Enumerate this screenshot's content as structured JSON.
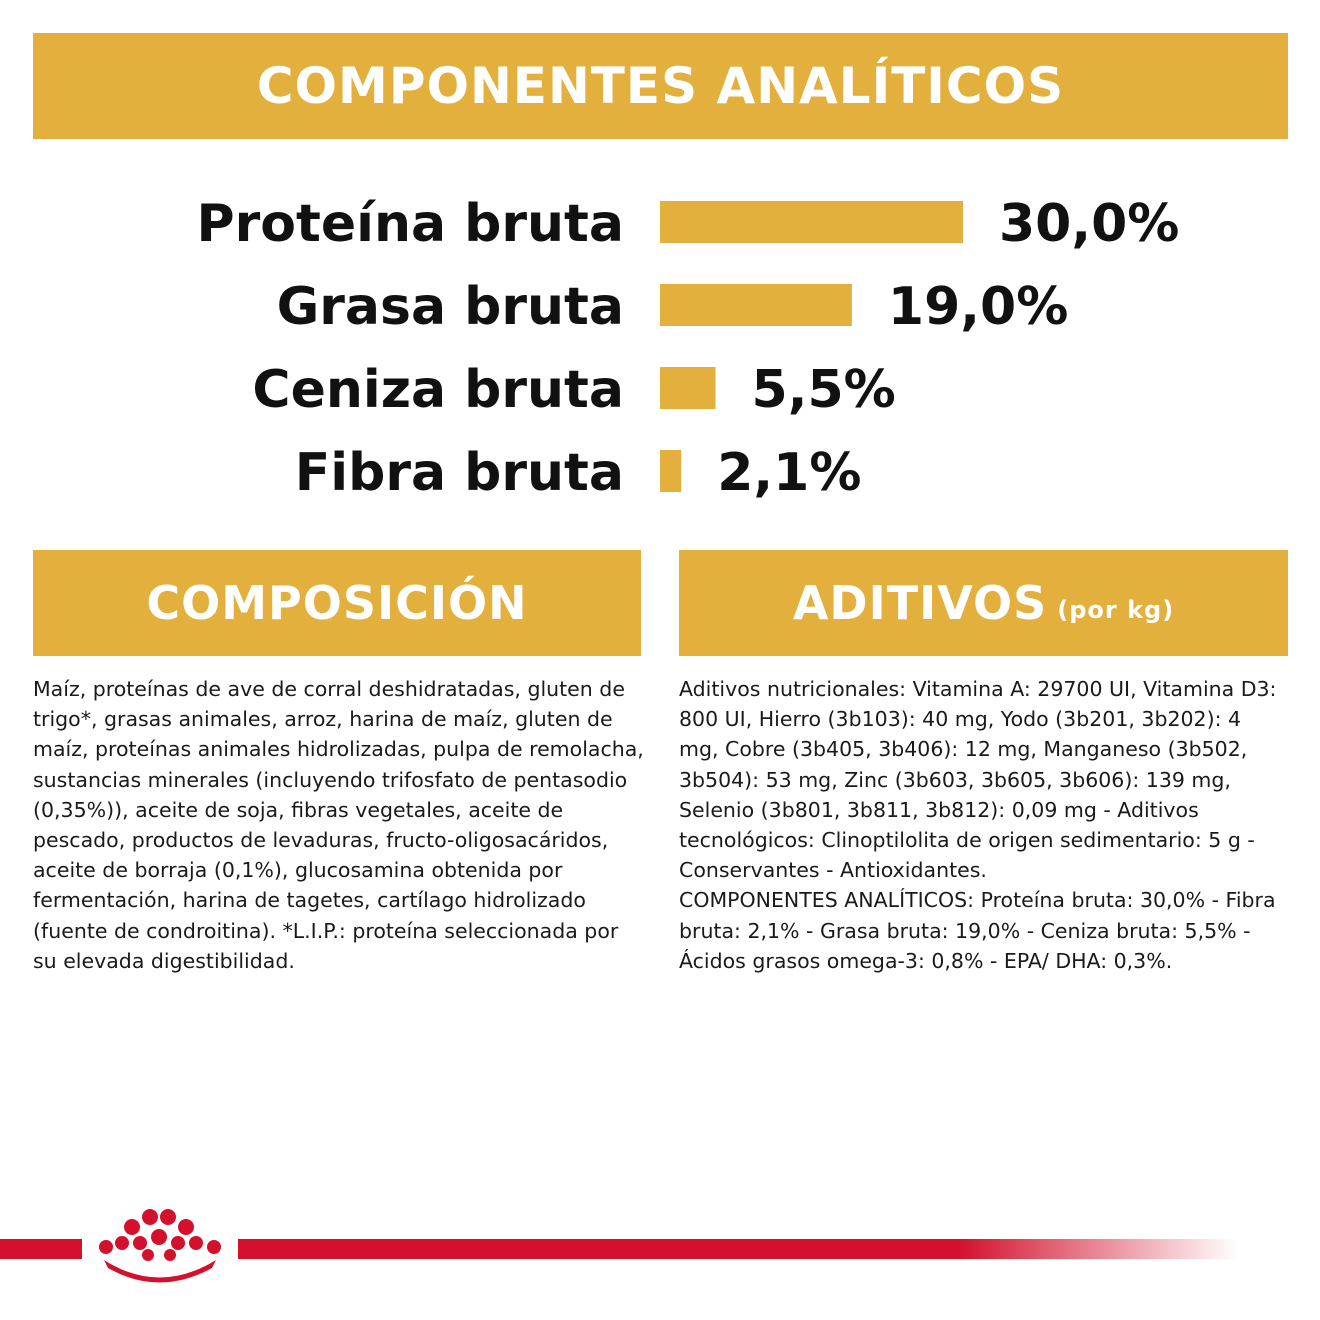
{
  "colors": {
    "gold": "#e3b03d",
    "red": "#d3112c"
  },
  "banners": {
    "top": "COMPONENTES ANALÍTICOS",
    "composicion": "COMPOSICIÓN",
    "aditivos": "ADITIVOS",
    "aditivos_sub": "(por kg)"
  },
  "chart_data": {
    "type": "bar",
    "orientation": "horizontal",
    "categories": [
      "Proteína bruta",
      "Grasa bruta",
      "Ceniza bruta",
      "Fibra bruta"
    ],
    "values": [
      30.0,
      19.0,
      5.5,
      2.1
    ],
    "value_labels": [
      "30,0%",
      "19,0%",
      "5,5%",
      "2,1%"
    ],
    "unit": "%",
    "bar_color": "#e3b03d",
    "title": "COMPONENTES ANALÍTICOS",
    "grid": false
  },
  "composicion_text": "Maíz, proteínas de ave de corral deshidratadas, gluten de trigo*, grasas animales, arroz, harina de maíz, gluten de maíz, proteínas animales hidrolizadas, pulpa de remolacha, sustancias minerales (incluyendo trifosfato de pentasodio (0,35%)), aceite de soja, fibras vegetales, aceite de pescado, productos de levaduras, fructo-oligosacáridos, aceite de borraja (0,1%), glucosamina obtenida por fermentación, harina de tagetes, cartílago hidrolizado (fuente de condroitina). *L.I.P.: proteína seleccionada por su elevada digestibilidad.",
  "aditivos_text": "Aditivos nutricionales: Vitamina A: 29700 UI, Vitamina D3: 800 UI, Hierro (3b103): 40 mg, Yodo (3b201, 3b202): 4 mg, Cobre (3b405, 3b406): 12 mg, Manganeso (3b502, 3b504): 53 mg, Zinc (3b603, 3b605, 3b606): 139 mg, Selenio (3b801, 3b811, 3b812): 0,09 mg - Aditivos tecnológicos: Clinoptilolita de origen sedimentario: 5 g - Conservantes - Antioxidantes.",
  "analiticos_text": "COMPONENTES ANALÍTICOS: Proteína bruta: 30,0% - Fibra bruta: 2,1% - Grasa bruta: 19,0% - Ceniza bruta: 5,5% - Ácidos grasos omega-3: 0,8% - EPA/ DHA: 0,3%.",
  "logo": {
    "icon": "royal-canin-crown-icon"
  }
}
